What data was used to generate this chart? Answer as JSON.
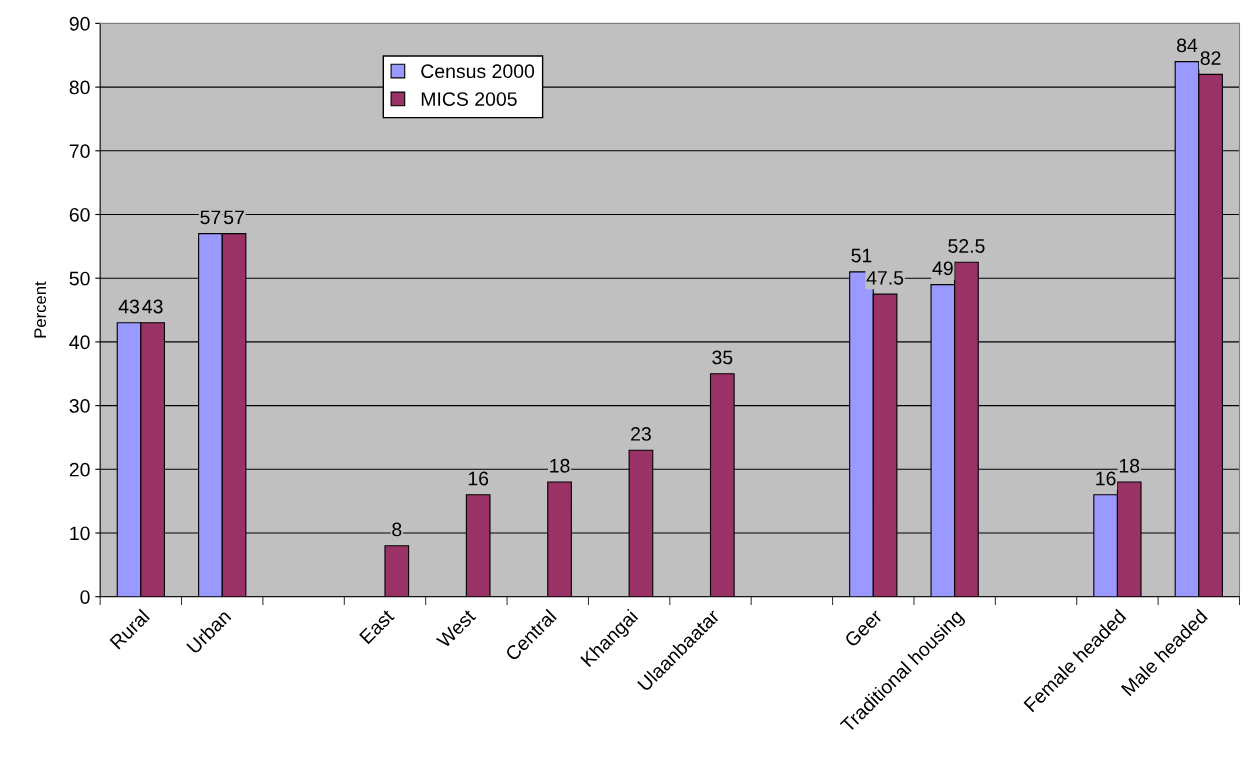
{
  "chart_data": {
    "type": "bar",
    "ylabel": "Percent",
    "categories": [
      "Rural",
      "Urban",
      null,
      "East",
      "West",
      "Central",
      "Khangai",
      "Ulaanbaatar",
      null,
      "Geer",
      "Traditional housing",
      null,
      "Female headed",
      "Male headed"
    ],
    "series": [
      {
        "name": "Census 2000",
        "color": "#9999ff",
        "values": [
          43,
          57,
          null,
          null,
          null,
          null,
          null,
          null,
          null,
          51,
          49,
          null,
          16,
          84
        ]
      },
      {
        "name": "MICS 2005",
        "color": "#993366",
        "values": [
          43,
          57,
          null,
          8,
          16,
          18,
          23,
          35,
          null,
          47.5,
          52.5,
          null,
          18,
          82
        ]
      }
    ],
    "ylim": [
      0,
      90
    ],
    "yticks": [
      0,
      10,
      20,
      30,
      40,
      50,
      60,
      70,
      80,
      90
    ],
    "grid": "y",
    "legend": "top left",
    "data_labels": true
  }
}
